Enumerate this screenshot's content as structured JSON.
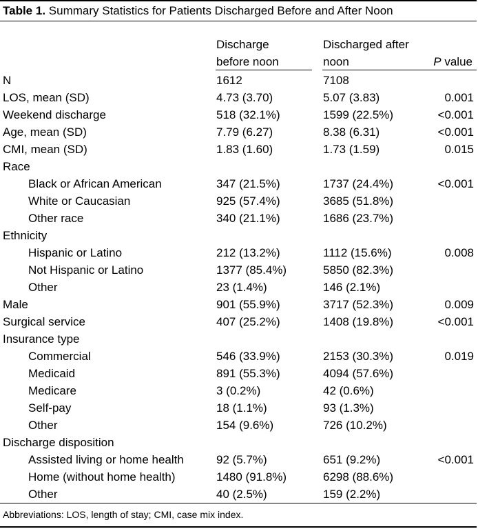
{
  "caption": {
    "label": "Table 1.",
    "title": " Summary Statistics for Patients Discharged Before and After Noon"
  },
  "headers": {
    "before_line1": "Discharge",
    "before_line2": "before noon",
    "after_line1": "Discharged after",
    "after_line2": "noon",
    "p_italic": "P",
    "p_rest": " value"
  },
  "rows": [
    {
      "label": "N",
      "before": "1612",
      "after": "7108",
      "p": ""
    },
    {
      "label": "LOS, mean (SD)",
      "before": "4.73 (3.70)",
      "after": "5.07 (3.83)",
      "p": "0.001"
    },
    {
      "label": "Weekend discharge",
      "before": "518 (32.1%)",
      "after": "1599 (22.5%)",
      "p": "<0.001"
    },
    {
      "label": "Age, mean (SD)",
      "before": "7.79 (6.27)",
      "after": "8.38 (6.31)",
      "p": "<0.001"
    },
    {
      "label": "CMI, mean (SD)",
      "before": "1.83 (1.60)",
      "after": "1.73 (1.59)",
      "p": "0.015"
    },
    {
      "label": "Race",
      "before": "",
      "after": "",
      "p": ""
    },
    {
      "label": "Black or African American",
      "before": "347 (21.5%)",
      "after": "1737 (24.4%)",
      "p": "<0.001"
    },
    {
      "label": "White or Caucasian",
      "before": "925 (57.4%)",
      "after": "3685 (51.8%)",
      "p": ""
    },
    {
      "label": "Other race",
      "before": "340 (21.1%)",
      "after": "1686 (23.7%)",
      "p": ""
    },
    {
      "label": "Ethnicity",
      "before": "",
      "after": "",
      "p": ""
    },
    {
      "label": "Hispanic or Latino",
      "before": "212 (13.2%)",
      "after": "1112 (15.6%)",
      "p": "0.008"
    },
    {
      "label": "Not Hispanic or Latino",
      "before": "1377 (85.4%)",
      "after": "5850 (82.3%)",
      "p": ""
    },
    {
      "label": "Other",
      "before": "23 (1.4%)",
      "after": "146 (2.1%)",
      "p": ""
    },
    {
      "label": "Male",
      "before": "901 (55.9%)",
      "after": "3717 (52.3%)",
      "p": "0.009"
    },
    {
      "label": "Surgical service",
      "before": "407 (25.2%)",
      "after": "1408 (19.8%)",
      "p": "<0.001"
    },
    {
      "label": "Insurance type",
      "before": "",
      "after": "",
      "p": ""
    },
    {
      "label": "Commercial",
      "before": "546 (33.9%)",
      "after": "2153 (30.3%)",
      "p": "0.019"
    },
    {
      "label": "Medicaid",
      "before": "891 (55.3%)",
      "after": "4094 (57.6%)",
      "p": ""
    },
    {
      "label": "Medicare",
      "before": "3 (0.2%)",
      "after": "42 (0.6%)",
      "p": ""
    },
    {
      "label": "Self-pay",
      "before": "18 (1.1%)",
      "after": "93 (1.3%)",
      "p": ""
    },
    {
      "label": "Other",
      "before": "154 (9.6%)",
      "after": "726 (10.2%)",
      "p": ""
    },
    {
      "label": "Discharge disposition",
      "before": "",
      "after": "",
      "p": ""
    },
    {
      "label": "Assisted living or home health",
      "before": "92 (5.7%)",
      "after": "651 (9.2%)",
      "p": "<0.001"
    },
    {
      "label": "Home (without home health)",
      "before": "1480 (91.8%)",
      "after": "6298 (88.6%)",
      "p": ""
    },
    {
      "label": "Other",
      "before": "40 (2.5%)",
      "after": "159 (2.2%)",
      "p": ""
    }
  ],
  "footnote": "Abbreviations: LOS, length of stay; CMI, case mix index."
}
